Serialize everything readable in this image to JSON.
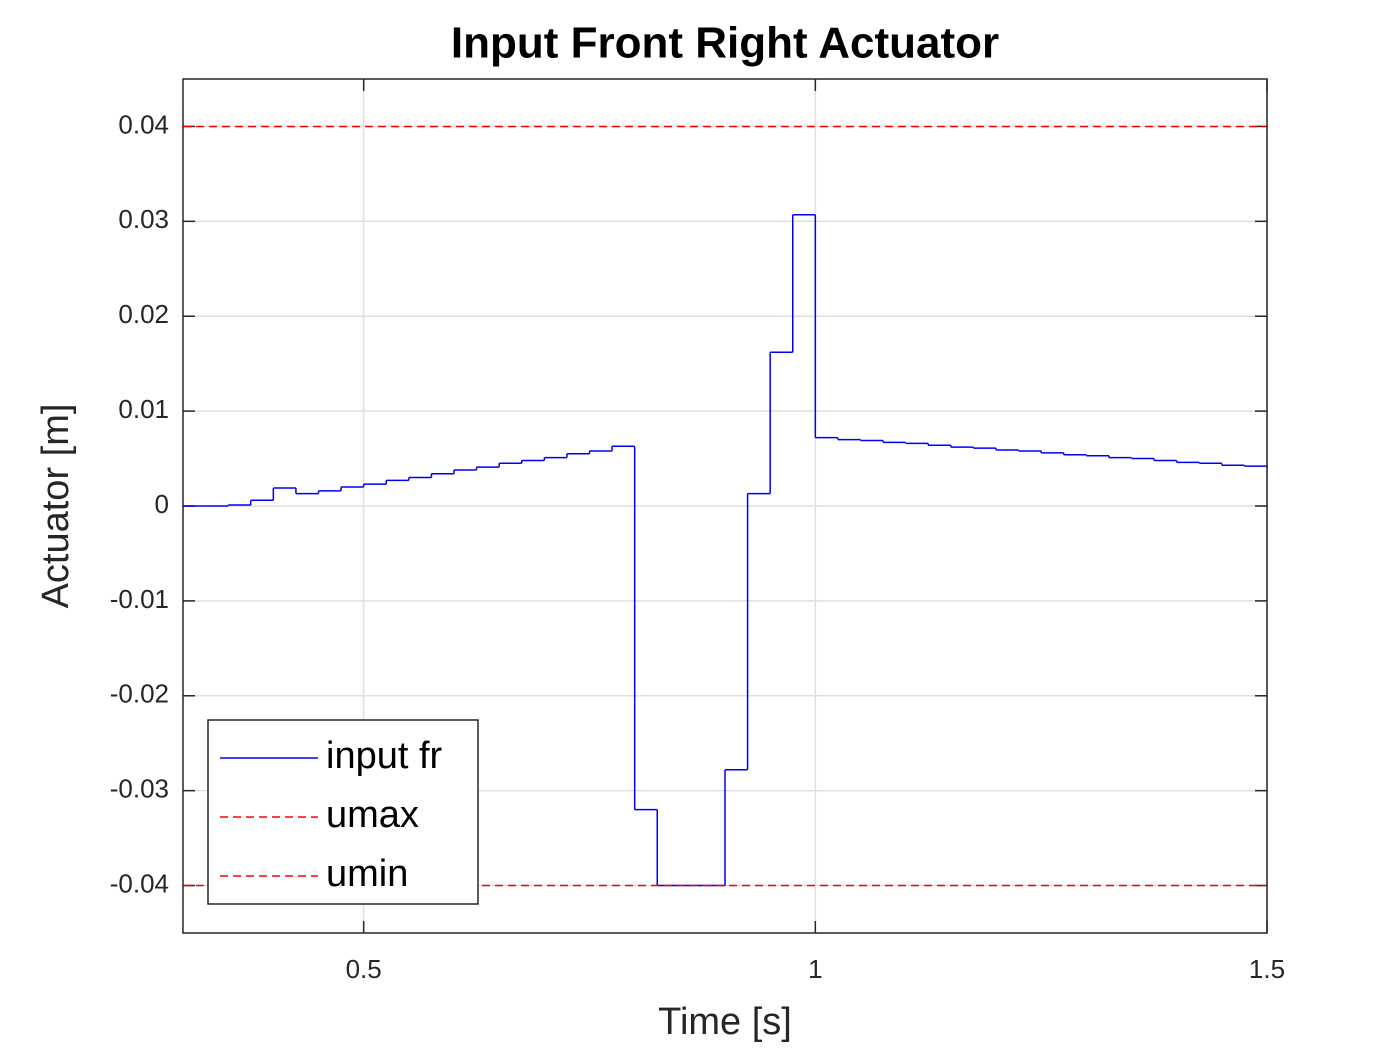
{
  "chart_data": {
    "type": "stairs",
    "title": "Input Front Right Actuator",
    "x_label": "Time [s]",
    "y_label": "Actuator [m]",
    "x": [
      0.3,
      0.325,
      0.35,
      0.375,
      0.4,
      0.425,
      0.45,
      0.475,
      0.5,
      0.525,
      0.55,
      0.575,
      0.6,
      0.625,
      0.65,
      0.675,
      0.7,
      0.725,
      0.75,
      0.775,
      0.8,
      0.825,
      0.85,
      0.875,
      0.9,
      0.925,
      0.95,
      0.975,
      1.0,
      1.025,
      1.05,
      1.075,
      1.1,
      1.125,
      1.15,
      1.175,
      1.2,
      1.225,
      1.25,
      1.275,
      1.3,
      1.325,
      1.35,
      1.375,
      1.4,
      1.425,
      1.45,
      1.475,
      1.5
    ],
    "series": [
      {
        "name": "input fr",
        "color": "#0000ff",
        "linestyle": "solid",
        "values": [
          0,
          0,
          0.0001,
          0.0006,
          0.0019,
          0.0013,
          0.0016,
          0.002,
          0.0023,
          0.0027,
          0.003,
          0.0034,
          0.0038,
          0.0041,
          0.0045,
          0.0048,
          0.0051,
          0.0055,
          0.0058,
          0.0063,
          -0.032,
          -0.04,
          -0.04,
          -0.04,
          -0.0278,
          0.0013,
          0.0162,
          0.0307,
          0.0072,
          0.007,
          0.0069,
          0.0067,
          0.0066,
          0.0064,
          0.0062,
          0.0061,
          0.0059,
          0.0058,
          0.0056,
          0.0054,
          0.0053,
          0.0051,
          0.005,
          0.0048,
          0.0046,
          0.0045,
          0.0043,
          0.0042,
          0.004
        ]
      },
      {
        "name": "umax",
        "color": "#ff0000",
        "linestyle": "dashed",
        "value": 0.04
      },
      {
        "name": "umin",
        "color": "#ff0000",
        "linestyle": "dashed",
        "value": -0.04
      }
    ],
    "xlim": [
      0.3,
      1.5
    ],
    "ylim": [
      -0.045,
      0.045
    ],
    "xticks": [
      0.5,
      1,
      1.5
    ],
    "yticks": [
      -0.04,
      -0.03,
      -0.02,
      -0.01,
      0,
      0.01,
      0.02,
      0.03,
      0.04
    ],
    "grid": true,
    "legend": "lower-left"
  }
}
